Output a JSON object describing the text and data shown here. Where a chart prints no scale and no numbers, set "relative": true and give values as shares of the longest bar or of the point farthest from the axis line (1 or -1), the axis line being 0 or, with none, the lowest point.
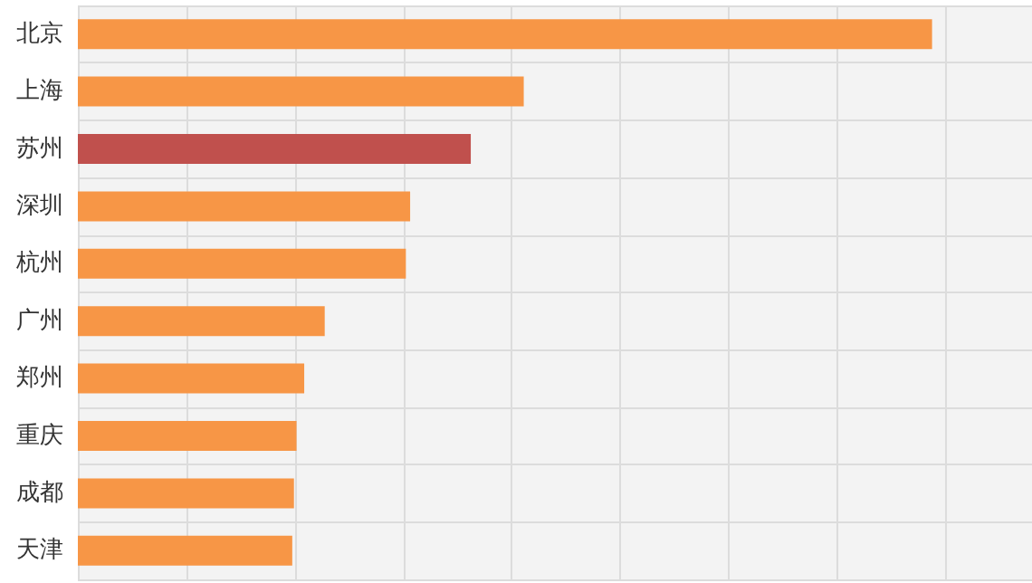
{
  "chart_data": {
    "type": "bar",
    "orientation": "horizontal",
    "relative": true,
    "grid": true,
    "categories": [
      "北京",
      "上海",
      "苏州",
      "深圳",
      "杭州",
      "广州",
      "郑州",
      "重庆",
      "成都",
      "天津"
    ],
    "values": [
      1,
      0.522,
      0.46,
      0.389,
      0.384,
      0.289,
      0.265,
      0.256,
      0.253,
      0.251
    ],
    "colors": [
      "#f79646",
      "#f79646",
      "#c0504d",
      "#f79646",
      "#f79646",
      "#f79646",
      "#f79646",
      "#f79646",
      "#f79646",
      "#f79646"
    ]
  }
}
